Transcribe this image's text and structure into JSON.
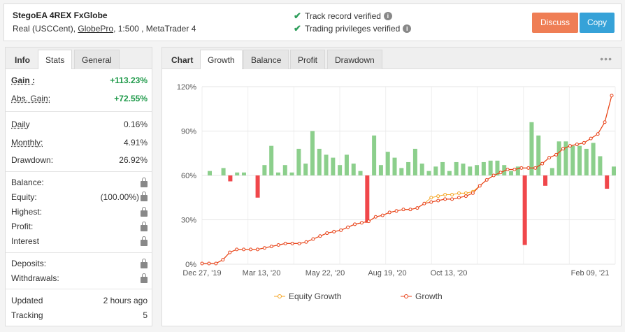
{
  "header": {
    "account_name": "StegoEA 4REX FxGlobe",
    "account_type": "Real (USCCent),",
    "broker": "GlobePro",
    "account_tail": ", 1:500 , MetaTrader 4",
    "verified": [
      "Track record verified",
      "Trading privileges verified"
    ],
    "discuss_label": "Discuss",
    "copy_label": "Copy"
  },
  "left": {
    "tabs": [
      "Info",
      "Stats",
      "General"
    ],
    "rows": [
      {
        "label": "Gain :",
        "value": "+113.23%"
      },
      {
        "label": "Abs. Gain:",
        "value": "+72.55%"
      },
      {
        "label": "Daily",
        "value": "0.16%"
      },
      {
        "label": "Monthly:",
        "value": "4.91%"
      },
      {
        "label": "Drawdown:",
        "value": "26.92%"
      },
      {
        "label": "Balance:",
        "value": ""
      },
      {
        "label": "Equity:",
        "value": "(100.00%)"
      },
      {
        "label": "Highest:",
        "value": ""
      },
      {
        "label": "Profit:",
        "value": ""
      },
      {
        "label": "Interest",
        "value": ""
      },
      {
        "label": "Deposits:",
        "value": ""
      },
      {
        "label": "Withdrawals:",
        "value": ""
      },
      {
        "label": "Updated",
        "value": "2 hours ago"
      },
      {
        "label": "Tracking",
        "value": "5"
      }
    ]
  },
  "chart_tabs": [
    "Chart",
    "Growth",
    "Balance",
    "Profit",
    "Drawdown"
  ],
  "colors": {
    "green": "#1f9a4a",
    "bar_pos": "#8ccf8c",
    "bar_neg": "#f0474b",
    "growth": "#e8421a",
    "equity": "#f5a623"
  },
  "chart_data": {
    "type": "line",
    "y_ticks": [
      "0%",
      "30%",
      "60%",
      "90%",
      "120%"
    ],
    "ylim": [
      0,
      120
    ],
    "x_ticks": [
      "Dec 27, '19",
      "Mar 13, '20",
      "May 22, '20",
      "Aug 19, '20",
      "Oct 13, '20",
      "Feb 09, '21"
    ],
    "legend": [
      "Equity Growth",
      "Growth"
    ],
    "growth": [
      0.5,
      0.5,
      0.5,
      3,
      8,
      10,
      10,
      10,
      10,
      11,
      12,
      13,
      14,
      14,
      14,
      15,
      17,
      19,
      21,
      22,
      23,
      25,
      27,
      28,
      29,
      32,
      33,
      35,
      36,
      37,
      37,
      38,
      41,
      42,
      43,
      44,
      44,
      45,
      46,
      48,
      53,
      57,
      60,
      62,
      64,
      64,
      65,
      65,
      65,
      68,
      72,
      74,
      78,
      80,
      81,
      82,
      85,
      88,
      96,
      114
    ],
    "equity": [
      0.5,
      0.5,
      0.5,
      3,
      8,
      10,
      10,
      10,
      10,
      11,
      12,
      13,
      14,
      14,
      14,
      15,
      17,
      19,
      21,
      22,
      23,
      25,
      27,
      28,
      29,
      32,
      33,
      35,
      36,
      37,
      37,
      38,
      41,
      45,
      46,
      47,
      47,
      48,
      48,
      49,
      53,
      57,
      60,
      62,
      64,
      64,
      65,
      65,
      65,
      68,
      72,
      74,
      78,
      80,
      81,
      82,
      85,
      88,
      96,
      114
    ],
    "bars": [
      3,
      0,
      5,
      -4,
      2,
      2,
      0,
      -15,
      7,
      20,
      2,
      7,
      2,
      18,
      8,
      30,
      18,
      14,
      12,
      7,
      14,
      8,
      3,
      -32,
      27,
      7,
      16,
      12,
      5,
      9,
      18,
      8,
      3,
      6,
      9,
      3,
      9,
      8,
      6,
      7,
      9,
      10,
      10,
      7,
      3,
      6,
      -47,
      36,
      27,
      -7,
      5,
      23,
      23,
      20,
      20,
      18,
      22,
      13,
      -9,
      6
    ]
  }
}
